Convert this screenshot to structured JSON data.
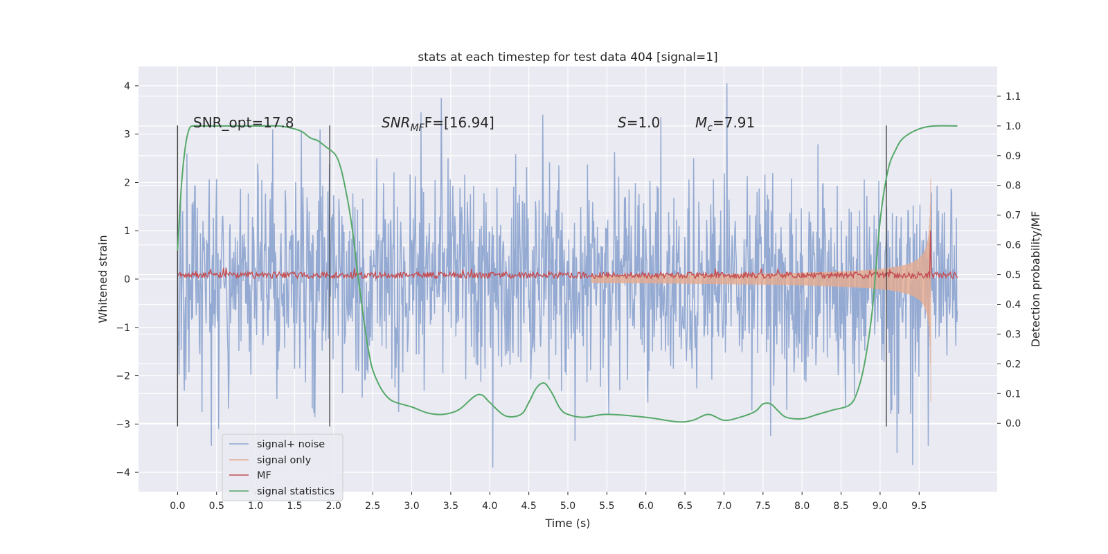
{
  "chart_data": {
    "type": "line",
    "title": "stats at each timestep for test data 404 [signal=1]",
    "xlabel": "Time (s)",
    "ylabel": "Whitened strain",
    "y2label": "Detection probability/MF",
    "xlim": [
      -0.5,
      10.5
    ],
    "ylim": [
      -4.4,
      4.4
    ],
    "y2lim": [
      -0.23,
      1.2
    ],
    "xticks": [
      0.0,
      0.5,
      1.0,
      1.5,
      2.0,
      2.5,
      3.0,
      3.5,
      4.0,
      4.5,
      5.0,
      5.5,
      6.0,
      6.5,
      7.0,
      7.5,
      8.0,
      8.5,
      9.0,
      9.5
    ],
    "xtick_labels": [
      "0.0",
      "0.5",
      "1.0",
      "1.5",
      "2.0",
      "2.5",
      "3.0",
      "3.5",
      "4.0",
      "4.5",
      "5.0",
      "5.5",
      "6.0",
      "6.5",
      "7.0",
      "7.5",
      "8.0",
      "8.5",
      "9.0",
      "9.5"
    ],
    "yticks": [
      -4,
      -3,
      -2,
      -1,
      0,
      1,
      2,
      3,
      4
    ],
    "ytick_labels": [
      "−4",
      "−3",
      "−2",
      "−1",
      "0",
      "1",
      "2",
      "3",
      "4"
    ],
    "y2ticks": [
      0.0,
      0.1,
      0.2,
      0.3,
      0.4,
      0.5,
      0.6,
      0.7,
      0.8,
      0.9,
      1.0,
      1.1
    ],
    "y2tick_labels": [
      "0.0",
      "0.1",
      "0.2",
      "0.3",
      "0.4",
      "0.5",
      "0.6",
      "0.7",
      "0.8",
      "0.9",
      "1.0",
      "1.1"
    ],
    "grid": true,
    "legend": {
      "placement": "lower-left",
      "entries": [
        {
          "label": "signal+ noise",
          "color": "#8fa6d0"
        },
        {
          "label": "signal only",
          "color": "#e5ab90"
        },
        {
          "label": "MF",
          "color": "#c44e52"
        },
        {
          "label": "signal statistics",
          "color": "#55a868"
        }
      ]
    },
    "annotations": {
      "snr_opt": "SNR_opt=17.8",
      "snr_mf_base": "SNR",
      "snr_mf_sub": "MF",
      "snr_mf_rest": "F=[16.94]",
      "s_base": "S",
      "s_rest": "=1.0",
      "mc_base": "M",
      "mc_sub": "c",
      "mc_rest": "=7.91"
    },
    "vertical_markers": [
      0.0,
      1.95,
      9.08
    ],
    "series": [
      {
        "name": "signal+ noise",
        "color": "#8fa6d0",
        "kind": "noise",
        "x_range": [
          0.0,
          9.99
        ],
        "std": 1.0,
        "spikes": [
          {
            "x": 0.12,
            "y": 2.6
          },
          {
            "x": 0.43,
            "y": -3.45
          },
          {
            "x": 1.22,
            "y": 3.1
          },
          {
            "x": 2.55,
            "y": 2.5
          },
          {
            "x": 3.12,
            "y": 3.45
          },
          {
            "x": 3.38,
            "y": 3.75
          },
          {
            "x": 4.04,
            "y": -3.9
          },
          {
            "x": 4.68,
            "y": 3.4
          },
          {
            "x": 5.09,
            "y": -3.35
          },
          {
            "x": 6.19,
            "y": 3.35
          },
          {
            "x": 7.04,
            "y": 4.05
          },
          {
            "x": 7.6,
            "y": -3.25
          },
          {
            "x": 9.22,
            "y": -3.6
          },
          {
            "x": 9.42,
            "y": -3.85
          },
          {
            "x": 9.62,
            "y": -3.45
          }
        ]
      },
      {
        "name": "signal only",
        "color": "#e5ab90",
        "kind": "chirp",
        "x_range": [
          5.3,
          9.65
        ],
        "peak_x": 9.65,
        "peak_amp": 2.55,
        "start_amp": 0.02
      },
      {
        "name": "MF",
        "color": "#c44e52",
        "kind": "mf",
        "x_range": [
          0.0,
          9.99
        ],
        "baseline": 0.08,
        "spike": {
          "x": 9.65,
          "y": 1.0
        }
      },
      {
        "name": "signal statistics",
        "color": "#55a868",
        "axis": "right",
        "x": [
          0.0,
          0.05,
          0.1,
          0.15,
          0.2,
          0.3,
          0.5,
          1.0,
          1.3,
          1.5,
          1.6,
          1.7,
          1.8,
          1.9,
          2.0,
          2.05,
          2.1,
          2.15,
          2.2,
          2.25,
          2.3,
          2.35,
          2.4,
          2.45,
          2.5,
          2.6,
          2.7,
          2.8,
          3.0,
          3.2,
          3.4,
          3.6,
          3.8,
          3.9,
          4.0,
          4.2,
          4.4,
          4.5,
          4.6,
          4.7,
          4.8,
          4.9,
          5.0,
          5.2,
          5.5,
          6.0,
          6.4,
          6.6,
          6.8,
          7.0,
          7.2,
          7.4,
          7.5,
          7.6,
          7.7,
          7.8,
          8.0,
          8.2,
          8.4,
          8.6,
          8.7,
          8.8,
          8.9,
          9.0,
          9.1,
          9.2,
          9.3,
          9.5,
          9.7,
          9.99
        ],
        "values": [
          0.58,
          0.8,
          0.93,
          0.99,
          1.0,
          1.0,
          1.0,
          1.0,
          1.0,
          0.99,
          0.98,
          0.96,
          0.95,
          0.93,
          0.91,
          0.89,
          0.85,
          0.79,
          0.72,
          0.63,
          0.52,
          0.42,
          0.32,
          0.24,
          0.18,
          0.12,
          0.085,
          0.07,
          0.055,
          0.035,
          0.03,
          0.045,
          0.09,
          0.095,
          0.07,
          0.025,
          0.03,
          0.07,
          0.12,
          0.135,
          0.1,
          0.05,
          0.03,
          0.02,
          0.03,
          0.02,
          0.005,
          0.01,
          0.03,
          0.01,
          0.02,
          0.04,
          0.065,
          0.065,
          0.04,
          0.02,
          0.015,
          0.03,
          0.045,
          0.06,
          0.1,
          0.2,
          0.38,
          0.68,
          0.85,
          0.92,
          0.96,
          0.99,
          1.0,
          1.0
        ]
      }
    ]
  }
}
